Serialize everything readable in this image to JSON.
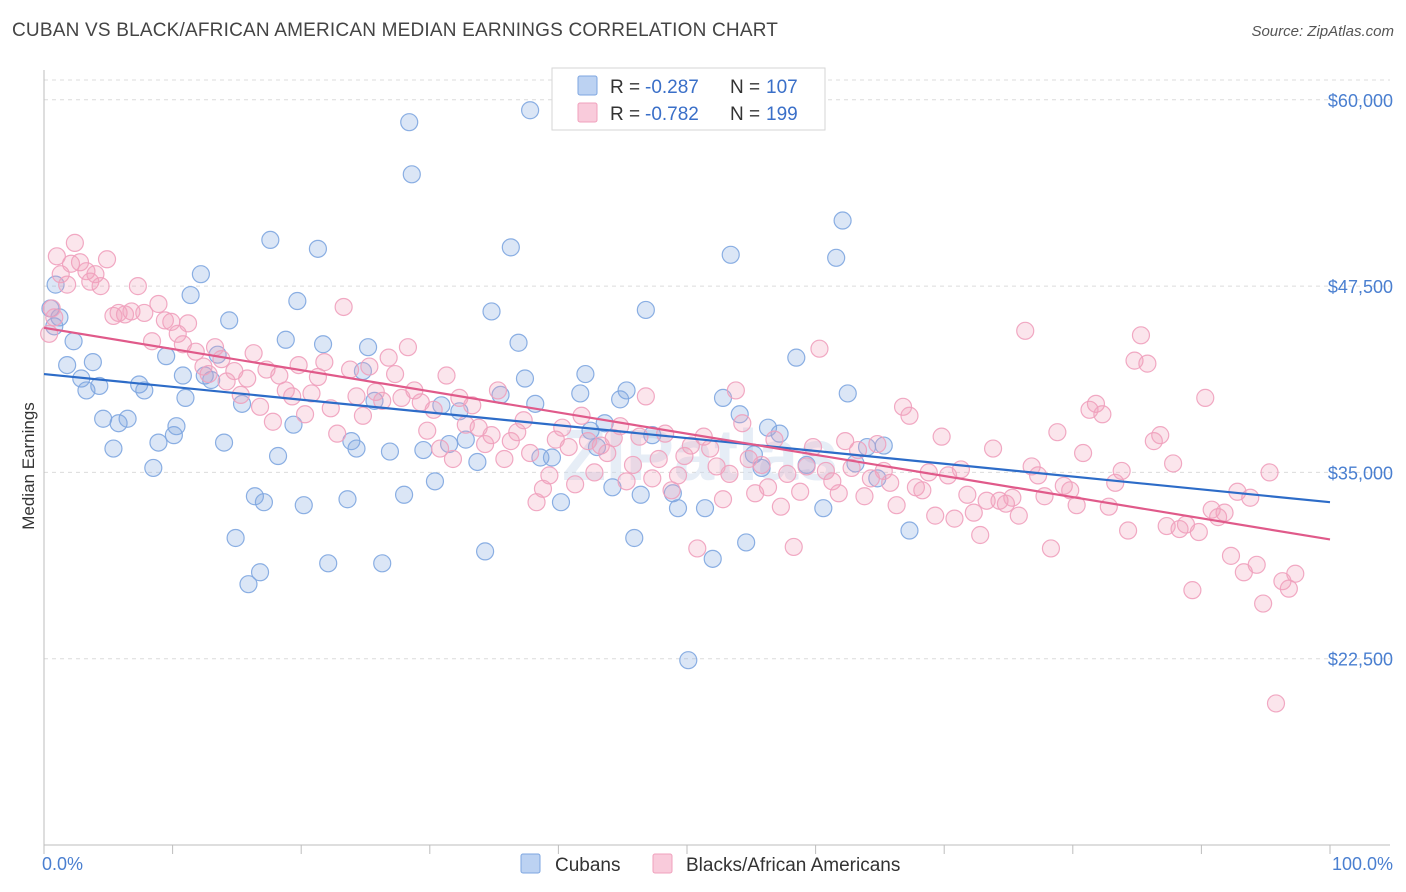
{
  "title": "CUBAN VS BLACK/AFRICAN AMERICAN MEDIAN EARNINGS CORRELATION CHART",
  "source": "Source: ZipAtlas.com",
  "watermark": "ZIPatlas",
  "chart_data": {
    "type": "scatter",
    "ylabel": "Median Earnings",
    "xlim": [
      0,
      100
    ],
    "ylim": [
      10000,
      62000
    ],
    "x_tick_labels": [
      "0.0%",
      "100.0%"
    ],
    "y_ticks": [
      22500,
      35000,
      47500,
      60000
    ],
    "y_tick_labels": [
      "$22,500",
      "$35,000",
      "$47,500",
      "$60,000"
    ],
    "grid": "horizontal dashed",
    "legend_placement": "top-center",
    "series": [
      {
        "name": "Cubans",
        "color": "#7ea6e0",
        "line_color": "#2d6cc8",
        "r_label": "R =",
        "r_value": "-0.287",
        "n_label": "N =",
        "n_value": "107",
        "trend": {
          "x": [
            0,
            100
          ],
          "y": [
            41600,
            33000
          ]
        },
        "points": [
          [
            0.5,
            46.0
          ],
          [
            0.8,
            44.8
          ],
          [
            0.9,
            47.6
          ],
          [
            1.2,
            45.4
          ],
          [
            1.8,
            42.2
          ],
          [
            2.3,
            43.8
          ],
          [
            2.9,
            41.3
          ],
          [
            3.3,
            40.5
          ],
          [
            3.8,
            42.4
          ],
          [
            4.3,
            40.8
          ],
          [
            4.6,
            38.6
          ],
          [
            5.4,
            36.6
          ],
          [
            5.8,
            38.3
          ],
          [
            6.5,
            38.6
          ],
          [
            7.4,
            40.9
          ],
          [
            7.8,
            40.5
          ],
          [
            8.5,
            35.3
          ],
          [
            8.9,
            37.0
          ],
          [
            9.5,
            42.8
          ],
          [
            10.1,
            37.5
          ],
          [
            10.3,
            38.1
          ],
          [
            10.8,
            41.5
          ],
          [
            11.0,
            40.0
          ],
          [
            11.4,
            46.9
          ],
          [
            12.2,
            48.3
          ],
          [
            12.5,
            41.5
          ],
          [
            13.0,
            41.2
          ],
          [
            13.5,
            42.9
          ],
          [
            14.0,
            37.0
          ],
          [
            14.4,
            45.2
          ],
          [
            14.9,
            30.6
          ],
          [
            15.4,
            39.6
          ],
          [
            15.9,
            27.5
          ],
          [
            16.4,
            33.4
          ],
          [
            16.8,
            28.3
          ],
          [
            17.1,
            33.0
          ],
          [
            17.6,
            50.6
          ],
          [
            18.2,
            36.1
          ],
          [
            18.8,
            43.9
          ],
          [
            19.4,
            38.2
          ],
          [
            19.7,
            46.5
          ],
          [
            20.2,
            32.8
          ],
          [
            21.3,
            50.0
          ],
          [
            21.7,
            43.6
          ],
          [
            22.1,
            28.9
          ],
          [
            23.6,
            33.2
          ],
          [
            23.9,
            37.1
          ],
          [
            24.3,
            36.6
          ],
          [
            24.8,
            41.8
          ],
          [
            25.2,
            43.4
          ],
          [
            25.7,
            39.8
          ],
          [
            26.3,
            28.9
          ],
          [
            26.9,
            36.4
          ],
          [
            28.0,
            33.5
          ],
          [
            28.4,
            58.5
          ],
          [
            28.6,
            55.0
          ],
          [
            29.5,
            36.5
          ],
          [
            30.4,
            34.4
          ],
          [
            30.9,
            39.5
          ],
          [
            31.5,
            36.9
          ],
          [
            32.3,
            39.1
          ],
          [
            32.8,
            37.2
          ],
          [
            33.7,
            35.7
          ],
          [
            34.3,
            29.7
          ],
          [
            34.8,
            45.8
          ],
          [
            35.5,
            40.2
          ],
          [
            36.3,
            50.1
          ],
          [
            36.9,
            43.7
          ],
          [
            37.4,
            41.3
          ],
          [
            37.8,
            59.3
          ],
          [
            38.2,
            39.6
          ],
          [
            38.6,
            36.0
          ],
          [
            39.5,
            36.0
          ],
          [
            40.2,
            33.0
          ],
          [
            41.7,
            40.3
          ],
          [
            42.1,
            41.6
          ],
          [
            42.5,
            37.8
          ],
          [
            43.0,
            36.7
          ],
          [
            43.6,
            38.3
          ],
          [
            44.2,
            34.0
          ],
          [
            44.8,
            39.9
          ],
          [
            45.3,
            40.5
          ],
          [
            45.9,
            30.6
          ],
          [
            46.4,
            33.5
          ],
          [
            46.8,
            45.9
          ],
          [
            47.3,
            37.5
          ],
          [
            48.9,
            33.6
          ],
          [
            49.3,
            32.6
          ],
          [
            50.1,
            22.4
          ],
          [
            51.4,
            32.6
          ],
          [
            52.0,
            29.2
          ],
          [
            52.8,
            40.0
          ],
          [
            53.4,
            49.6
          ],
          [
            54.1,
            38.9
          ],
          [
            54.6,
            30.3
          ],
          [
            55.2,
            36.2
          ],
          [
            55.8,
            35.3
          ],
          [
            56.3,
            38.0
          ],
          [
            57.2,
            37.6
          ],
          [
            58.5,
            42.7
          ],
          [
            59.3,
            35.5
          ],
          [
            60.6,
            32.6
          ],
          [
            61.6,
            49.4
          ],
          [
            62.1,
            51.9
          ],
          [
            62.5,
            40.3
          ],
          [
            63.1,
            35.6
          ],
          [
            64.0,
            36.7
          ],
          [
            64.8,
            34.6
          ],
          [
            65.3,
            36.8
          ],
          [
            67.3,
            31.1
          ]
        ]
      },
      {
        "name": "Blacks/African Americans",
        "color": "#f0a0bc",
        "line_color": "#e05a8a",
        "r_label": "R =",
        "r_value": "-0.782",
        "n_label": "N =",
        "n_value": "199",
        "trend": {
          "x": [
            0,
            100
          ],
          "y": [
            44700,
            30500
          ]
        },
        "points": [
          [
            0.4,
            44.3
          ],
          [
            0.6,
            46.0
          ],
          [
            0.8,
            45.4
          ],
          [
            1.0,
            49.5
          ],
          [
            1.3,
            48.3
          ],
          [
            1.8,
            47.6
          ],
          [
            2.1,
            49.0
          ],
          [
            2.4,
            50.4
          ],
          [
            2.8,
            49.1
          ],
          [
            3.3,
            48.5
          ],
          [
            3.6,
            47.8
          ],
          [
            4.0,
            48.3
          ],
          [
            4.4,
            47.5
          ],
          [
            4.9,
            49.3
          ],
          [
            5.4,
            45.5
          ],
          [
            5.8,
            45.7
          ],
          [
            6.3,
            45.6
          ],
          [
            6.8,
            45.8
          ],
          [
            7.3,
            47.5
          ],
          [
            7.8,
            45.7
          ],
          [
            8.4,
            43.8
          ],
          [
            8.9,
            46.3
          ],
          [
            9.4,
            45.2
          ],
          [
            9.9,
            45.1
          ],
          [
            10.4,
            44.3
          ],
          [
            10.8,
            43.6
          ],
          [
            11.2,
            45.0
          ],
          [
            11.8,
            43.1
          ],
          [
            12.4,
            42.1
          ],
          [
            12.8,
            41.6
          ],
          [
            13.3,
            43.4
          ],
          [
            13.8,
            42.6
          ],
          [
            14.2,
            41.1
          ],
          [
            14.8,
            41.8
          ],
          [
            15.3,
            40.2
          ],
          [
            15.8,
            41.3
          ],
          [
            16.3,
            43.0
          ],
          [
            16.8,
            39.4
          ],
          [
            17.3,
            41.9
          ],
          [
            17.8,
            38.4
          ],
          [
            18.3,
            41.5
          ],
          [
            18.8,
            40.5
          ],
          [
            19.3,
            40.1
          ],
          [
            19.8,
            42.2
          ],
          [
            20.3,
            38.9
          ],
          [
            20.8,
            40.3
          ],
          [
            21.3,
            41.4
          ],
          [
            21.8,
            42.4
          ],
          [
            22.3,
            39.3
          ],
          [
            22.8,
            37.6
          ],
          [
            23.3,
            46.1
          ],
          [
            23.8,
            41.9
          ],
          [
            24.3,
            40.1
          ],
          [
            24.8,
            38.8
          ],
          [
            25.3,
            42.1
          ],
          [
            25.8,
            40.4
          ],
          [
            26.3,
            39.8
          ],
          [
            26.8,
            42.7
          ],
          [
            27.3,
            41.6
          ],
          [
            27.8,
            40.0
          ],
          [
            28.3,
            43.4
          ],
          [
            28.8,
            40.5
          ],
          [
            29.3,
            39.7
          ],
          [
            29.8,
            37.8
          ],
          [
            30.3,
            39.2
          ],
          [
            30.8,
            36.6
          ],
          [
            31.3,
            41.5
          ],
          [
            31.8,
            35.9
          ],
          [
            32.3,
            40.0
          ],
          [
            32.8,
            38.2
          ],
          [
            33.3,
            39.5
          ],
          [
            33.8,
            38.0
          ],
          [
            34.3,
            36.9
          ],
          [
            34.8,
            37.5
          ],
          [
            35.3,
            40.5
          ],
          [
            35.8,
            35.9
          ],
          [
            36.3,
            37.1
          ],
          [
            36.8,
            37.7
          ],
          [
            37.3,
            38.5
          ],
          [
            37.8,
            36.3
          ],
          [
            38.3,
            33.0
          ],
          [
            38.8,
            33.9
          ],
          [
            39.3,
            34.8
          ],
          [
            39.8,
            37.2
          ],
          [
            40.3,
            38.0
          ],
          [
            40.8,
            36.7
          ],
          [
            41.3,
            34.2
          ],
          [
            41.8,
            38.8
          ],
          [
            42.3,
            37.1
          ],
          [
            42.8,
            35.0
          ],
          [
            43.3,
            36.8
          ],
          [
            43.8,
            36.3
          ],
          [
            44.3,
            37.3
          ],
          [
            44.8,
            38.1
          ],
          [
            45.3,
            34.4
          ],
          [
            45.8,
            35.5
          ],
          [
            46.3,
            37.4
          ],
          [
            46.8,
            40.1
          ],
          [
            47.3,
            34.6
          ],
          [
            47.8,
            35.9
          ],
          [
            48.3,
            37.6
          ],
          [
            48.8,
            33.8
          ],
          [
            49.3,
            34.8
          ],
          [
            49.8,
            36.1
          ],
          [
            50.3,
            36.8
          ],
          [
            50.8,
            29.9
          ],
          [
            51.3,
            37.4
          ],
          [
            51.8,
            36.6
          ],
          [
            52.3,
            35.4
          ],
          [
            52.8,
            33.2
          ],
          [
            53.3,
            34.9
          ],
          [
            53.8,
            40.5
          ],
          [
            54.3,
            38.3
          ],
          [
            54.8,
            35.9
          ],
          [
            55.3,
            33.6
          ],
          [
            55.8,
            35.5
          ],
          [
            56.3,
            34.0
          ],
          [
            56.8,
            37.2
          ],
          [
            57.3,
            32.7
          ],
          [
            57.8,
            34.9
          ],
          [
            58.3,
            30.0
          ],
          [
            58.8,
            33.7
          ],
          [
            59.3,
            35.4
          ],
          [
            59.8,
            36.7
          ],
          [
            60.3,
            43.3
          ],
          [
            60.8,
            35.1
          ],
          [
            61.3,
            34.4
          ],
          [
            61.8,
            33.6
          ],
          [
            62.3,
            37.1
          ],
          [
            62.8,
            35.3
          ],
          [
            63.3,
            36.5
          ],
          [
            63.8,
            33.4
          ],
          [
            64.3,
            34.6
          ],
          [
            64.8,
            36.9
          ],
          [
            65.3,
            35.1
          ],
          [
            65.8,
            34.3
          ],
          [
            66.3,
            32.8
          ],
          [
            66.8,
            39.4
          ],
          [
            67.3,
            38.8
          ],
          [
            67.8,
            34.0
          ],
          [
            68.3,
            33.8
          ],
          [
            68.8,
            35.0
          ],
          [
            69.3,
            32.1
          ],
          [
            69.8,
            37.4
          ],
          [
            70.3,
            34.8
          ],
          [
            70.8,
            31.9
          ],
          [
            71.3,
            35.2
          ],
          [
            71.8,
            33.5
          ],
          [
            72.3,
            32.3
          ],
          [
            72.8,
            30.8
          ],
          [
            73.3,
            33.1
          ],
          [
            73.8,
            36.6
          ],
          [
            74.3,
            33.1
          ],
          [
            74.8,
            32.9
          ],
          [
            75.3,
            33.3
          ],
          [
            75.8,
            32.1
          ],
          [
            76.3,
            44.5
          ],
          [
            76.8,
            35.4
          ],
          [
            77.3,
            34.8
          ],
          [
            77.8,
            33.4
          ],
          [
            78.3,
            29.9
          ],
          [
            78.8,
            37.7
          ],
          [
            79.3,
            34.1
          ],
          [
            79.8,
            33.8
          ],
          [
            80.3,
            32.8
          ],
          [
            80.8,
            36.3
          ],
          [
            81.3,
            39.2
          ],
          [
            81.8,
            39.6
          ],
          [
            82.3,
            38.9
          ],
          [
            82.8,
            32.7
          ],
          [
            83.3,
            34.3
          ],
          [
            83.8,
            35.1
          ],
          [
            84.3,
            31.1
          ],
          [
            84.8,
            42.5
          ],
          [
            85.3,
            44.2
          ],
          [
            85.8,
            42.3
          ],
          [
            86.3,
            37.1
          ],
          [
            86.8,
            37.5
          ],
          [
            87.3,
            31.4
          ],
          [
            87.8,
            35.6
          ],
          [
            88.3,
            31.2
          ],
          [
            88.8,
            31.5
          ],
          [
            89.3,
            27.1
          ],
          [
            89.8,
            31.0
          ],
          [
            90.3,
            40.0
          ],
          [
            90.8,
            32.5
          ],
          [
            91.3,
            32.0
          ],
          [
            91.8,
            32.3
          ],
          [
            92.3,
            29.4
          ],
          [
            92.8,
            33.7
          ],
          [
            93.3,
            28.3
          ],
          [
            93.8,
            33.3
          ],
          [
            94.3,
            28.8
          ],
          [
            94.8,
            26.2
          ],
          [
            95.3,
            35.0
          ],
          [
            95.8,
            19.5
          ],
          [
            96.3,
            27.7
          ],
          [
            96.8,
            27.2
          ],
          [
            97.3,
            28.2
          ]
        ]
      }
    ]
  }
}
